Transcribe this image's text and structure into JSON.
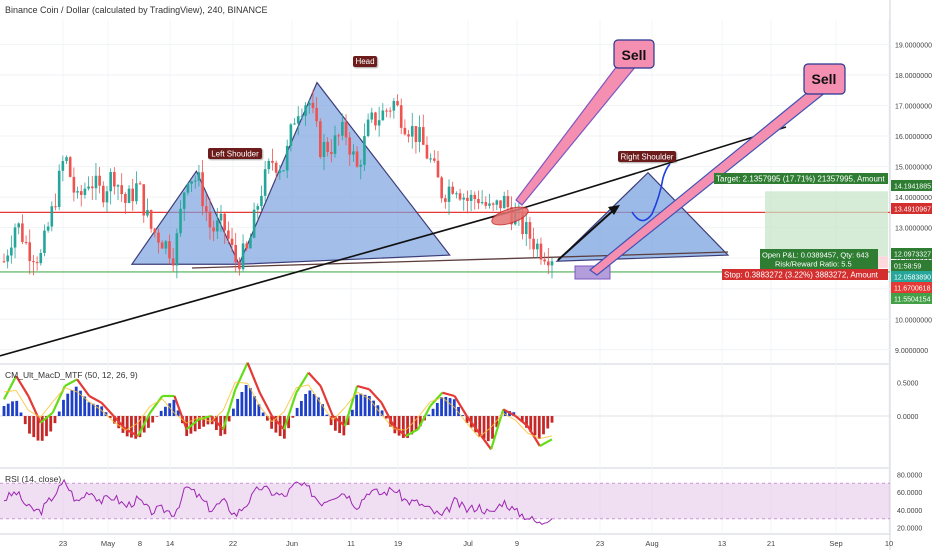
{
  "header": {
    "title": "Binance Coin / Dollar (calculated by TradingView), 240, BINANCE"
  },
  "macd_label": "CM_Ult_MacD_MTF (50, 12, 26, 9)",
  "rsi_label": "RSI (14, close)",
  "annotations": {
    "head": "Head",
    "left_shoulder": "Left Shoulder",
    "right_shoulder": "Right Shoulder",
    "sell": "Sell",
    "target": "Target: 2.1357995 (17.71%) 21357995, Amount",
    "open_pl": "Open P&L: 0.0389457, Qty: 643",
    "risk_reward": "Risk/Reward Ratio: 5.5",
    "stop": "Stop: 0.3883272 (3.22%) 3883272, Amount"
  },
  "price_tags": [
    {
      "label": "14.1941885",
      "color": "#2e7d32"
    },
    {
      "label": "13.4910967",
      "color": "#d32f2f"
    },
    {
      "label": "12.0973327",
      "color": "#2e7d32"
    },
    {
      "label": "01:58:59",
      "color": "#2e7d32"
    },
    {
      "label": "12.0583890",
      "color": "#26a69a"
    },
    {
      "label": "11.6700618",
      "color": "#e53935"
    },
    {
      "label": "11.5504154",
      "color": "#43a047"
    }
  ],
  "colors": {
    "up": "#26a69a",
    "down": "#ef5350",
    "resistance": "#e53935",
    "support": "#4caf50",
    "pattern_fill": "#7aa3e0",
    "sell_fill": "#f48fb1",
    "rsi_line": "#9c27b0",
    "rsi_band": "#e1bee7"
  },
  "chart_data": {
    "type": "candlestick",
    "title": "Binance Coin / Dollar (calculated by TradingView), 240, BINANCE",
    "x_ticks": [
      "23",
      "May",
      "8",
      "14",
      "22",
      "Jun",
      "11",
      "19",
      "Jul",
      "9",
      "23",
      "Aug",
      "13",
      "21",
      "Sep",
      "10"
    ],
    "y_ticks": [
      9.0,
      10.0,
      11.0,
      12.0,
      13.0,
      14.0,
      15.0,
      16.0,
      17.0,
      18.0,
      19.0
    ],
    "y_tick_labels": [
      "9.0000000",
      "10.0000000",
      "11.0000000",
      "12.0000000",
      "13.0000000",
      "14.0000000",
      "15.0000000",
      "16.0000000",
      "17.0000000",
      "18.0000000",
      "19.0000000"
    ],
    "ylim": [
      8.6,
      19.8
    ],
    "close_path": [
      11.9,
      13.2,
      12.3,
      12.0,
      13.6,
      15.4,
      13.8,
      14.6,
      14.1,
      14.8,
      13.8,
      14.4,
      13.0,
      12.6,
      12.1,
      14.8,
      14.5,
      12.9,
      13.1,
      11.9,
      12.2,
      14.1,
      15.2,
      15.0,
      16.9,
      17.2,
      15.6,
      15.7,
      16.2,
      14.9,
      16.4,
      16.7,
      17.1,
      16.4,
      16.0,
      15.2,
      14.1,
      14.5,
      13.9,
      14.0,
      13.5,
      13.9,
      13.3,
      12.8,
      12.3,
      12.1
    ],
    "patterns": {
      "left_shoulder": [
        [
          10.5,
          11.8
        ],
        [
          15.8,
          14.85
        ],
        [
          19.3,
          11.8
        ]
      ],
      "head": [
        [
          19.3,
          11.8
        ],
        [
          25.7,
          17.75
        ],
        [
          36.6,
          12.1
        ]
      ],
      "right_shoulder": [
        [
          38.5,
          11.9
        ],
        [
          46.8,
          14.8
        ],
        [
          52.0,
          12.1
        ]
      ]
    },
    "resistance_level": 13.5,
    "support_level": 11.55,
    "trendline_1": [
      [
        0,
        8.8
      ],
      [
        30,
        13.45
      ]
    ],
    "trendline_2": [
      [
        30,
        13.45
      ],
      [
        55,
        16.05
      ]
    ],
    "target_level": 14.19,
    "stop_level": 11.67,
    "entry_level": 12.06,
    "macd": {
      "ylim": [
        -0.75,
        0.75
      ],
      "y_tick_labels": [
        "0.5000",
        "0.0000"
      ],
      "y_ticks": [
        0.5,
        0.0
      ],
      "hist": [
        0.15,
        0.25,
        -0.25,
        -0.4,
        -0.2,
        0.3,
        0.45,
        0.2,
        0.15,
        -0.1,
        -0.3,
        -0.35,
        -0.15,
        0.1,
        0.25,
        -0.3,
        -0.2,
        -0.1,
        -0.35,
        0.2,
        0.5,
        0.15,
        -0.2,
        -0.35,
        0.1,
        0.4,
        0.25,
        -0.2,
        -0.3,
        0.35,
        0.3,
        0.1,
        -0.25,
        -0.35,
        -0.2,
        0.05,
        0.3,
        0.25,
        -0.1,
        -0.3,
        -0.4,
        0.1,
        0.05,
        -0.2,
        -0.35,
        -0.1
      ],
      "line": [
        0.25,
        0.6,
        0.3,
        -0.1,
        0.05,
        0.45,
        0.55,
        0.3,
        0.2,
        0.0,
        -0.2,
        -0.3,
        0.05,
        0.3,
        0.3,
        -0.2,
        -0.05,
        0.0,
        -0.2,
        0.4,
        0.8,
        0.35,
        0.0,
        -0.2,
        0.35,
        0.65,
        0.45,
        0.0,
        -0.15,
        0.45,
        0.4,
        0.2,
        -0.15,
        -0.3,
        -0.2,
        0.15,
        0.35,
        0.3,
        0.0,
        -0.25,
        -0.5,
        0.1,
        0.0,
        -0.15,
        -0.45,
        -0.35
      ]
    },
    "rsi": {
      "ylim": [
        15,
        85
      ],
      "y_ticks": [
        80,
        60,
        40,
        20
      ],
      "y_tick_labels": [
        "80.0000",
        "60.0000",
        "40.0000",
        "20.0000"
      ],
      "band": [
        30,
        70
      ],
      "values": [
        52,
        60,
        42,
        38,
        55,
        72,
        48,
        62,
        50,
        55,
        44,
        52,
        38,
        41,
        36,
        66,
        55,
        40,
        50,
        34,
        48,
        66,
        60,
        55,
        70,
        64,
        48,
        56,
        60,
        44,
        62,
        58,
        64,
        50,
        48,
        40,
        32,
        50,
        40,
        44,
        35,
        50,
        38,
        32,
        24,
        34
      ]
    }
  }
}
